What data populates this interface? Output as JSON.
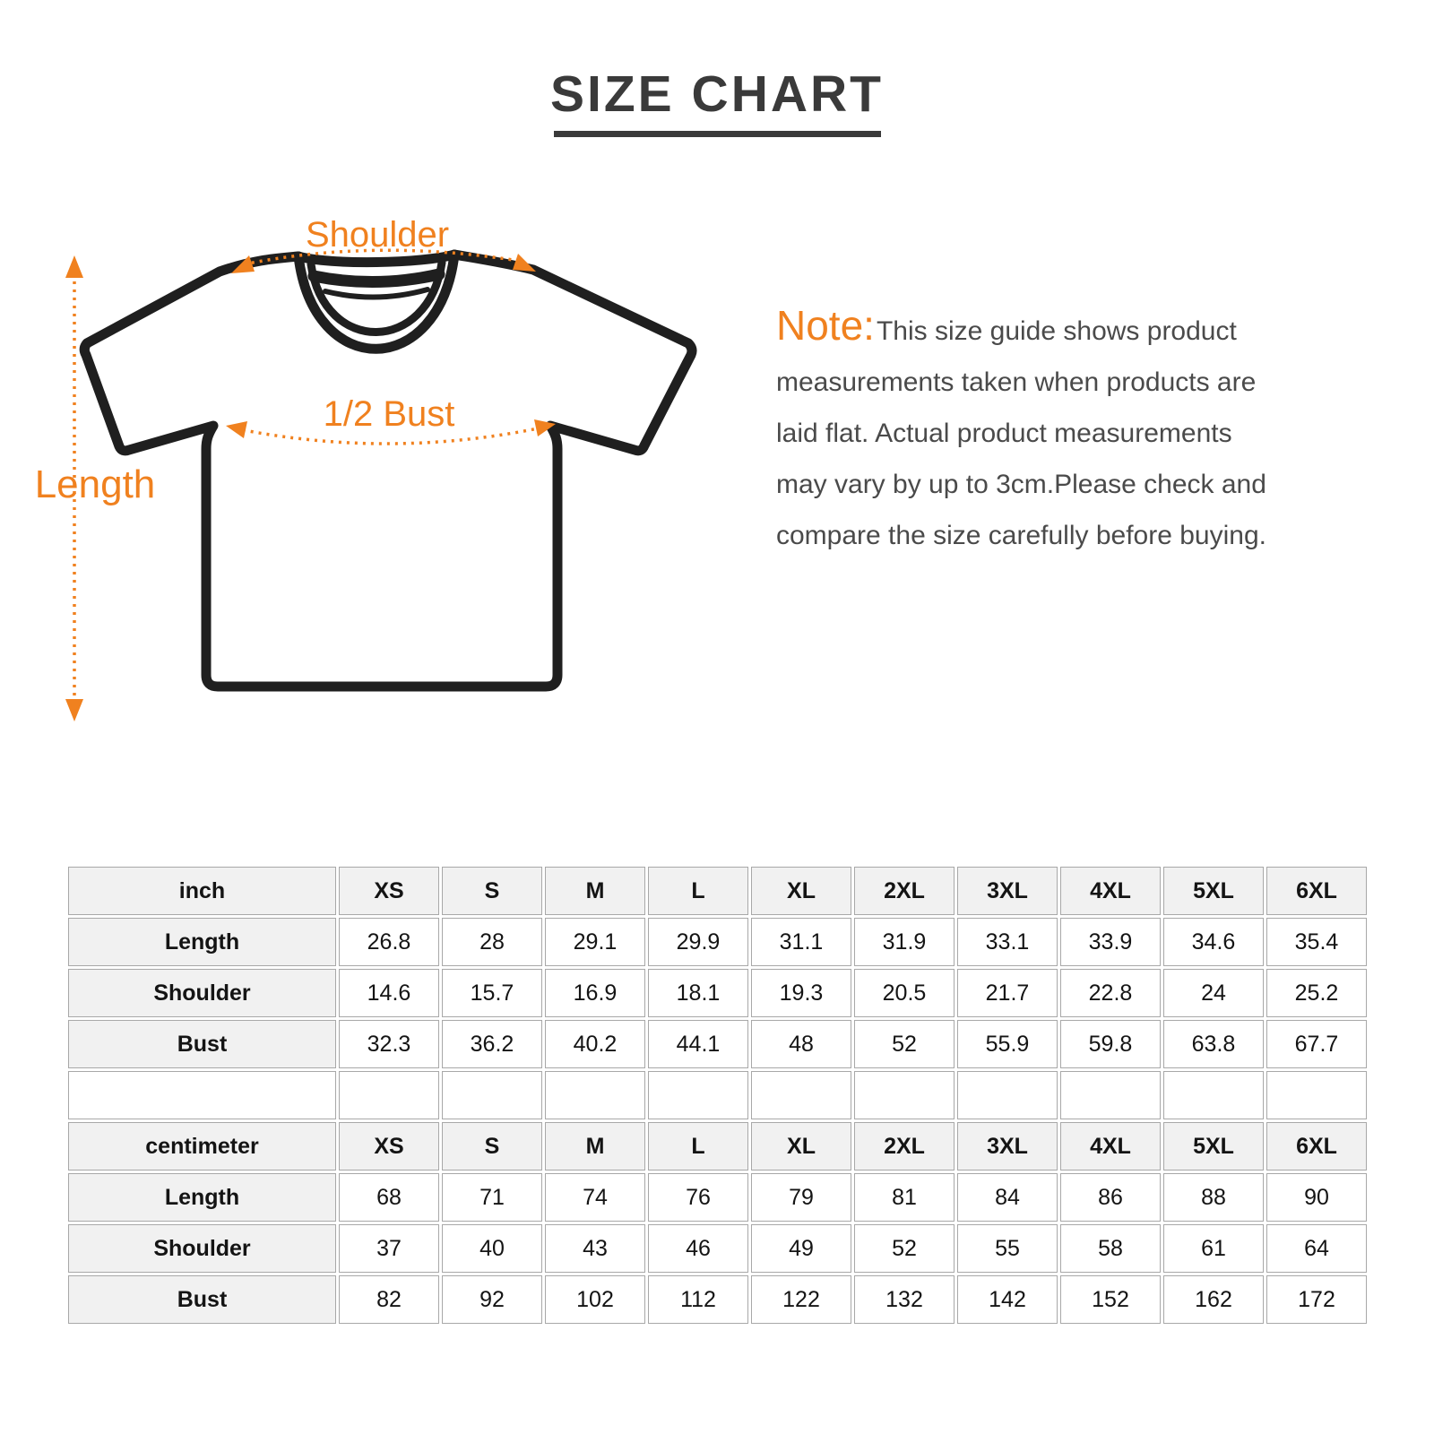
{
  "title": "SIZE CHART",
  "colors": {
    "accent_orange": "#f0811f",
    "title_gray": "#3a3a3a",
    "note_text_gray": "#4a4a4a",
    "shirt_outline_black": "#1f1f1f",
    "table_header_bg": "#f1f1f1",
    "table_border_gray": "#a8a8a8"
  },
  "diagram": {
    "shoulder_label": "Shoulder",
    "bust_label": "1/2 Bust",
    "length_label": "Length"
  },
  "note": {
    "heading": "Note:",
    "lines": [
      "This size guide shows product",
      "measurements taken when products are",
      "laid flat. Actual product measurements",
      "may vary by up to 3cm.Please check and",
      "compare the size carefully before buying."
    ]
  },
  "table_rows": [
    {
      "kind": "header",
      "cells": [
        "inch",
        "XS",
        "S",
        "M",
        "L",
        "XL",
        "2XL",
        "3XL",
        "4XL",
        "5XL",
        "6XL"
      ]
    },
    {
      "kind": "data",
      "cells": [
        "Length",
        "26.8",
        "28",
        "29.1",
        "29.9",
        "31.1",
        "31.9",
        "33.1",
        "33.9",
        "34.6",
        "35.4"
      ]
    },
    {
      "kind": "data",
      "cells": [
        "Shoulder",
        "14.6",
        "15.7",
        "16.9",
        "18.1",
        "19.3",
        "20.5",
        "21.7",
        "22.8",
        "24",
        "25.2"
      ]
    },
    {
      "kind": "data",
      "cells": [
        "Bust",
        "32.3",
        "36.2",
        "40.2",
        "44.1",
        "48",
        "52",
        "55.9",
        "59.8",
        "63.8",
        "67.7"
      ]
    },
    {
      "kind": "spacer",
      "cells": [
        "",
        "",
        "",
        "",
        "",
        "",
        "",
        "",
        "",
        "",
        ""
      ]
    },
    {
      "kind": "header",
      "cells": [
        "centimeter",
        "XS",
        "S",
        "M",
        "L",
        "XL",
        "2XL",
        "3XL",
        "4XL",
        "5XL",
        "6XL"
      ]
    },
    {
      "kind": "data",
      "cells": [
        "Length",
        "68",
        "71",
        "74",
        "76",
        "79",
        "81",
        "84",
        "86",
        "88",
        "90"
      ]
    },
    {
      "kind": "data",
      "cells": [
        "Shoulder",
        "37",
        "40",
        "43",
        "46",
        "49",
        "52",
        "55",
        "58",
        "61",
        "64"
      ]
    },
    {
      "kind": "data",
      "cells": [
        "Bust",
        "82",
        "92",
        "102",
        "112",
        "122",
        "132",
        "142",
        "152",
        "162",
        "172"
      ]
    }
  ]
}
